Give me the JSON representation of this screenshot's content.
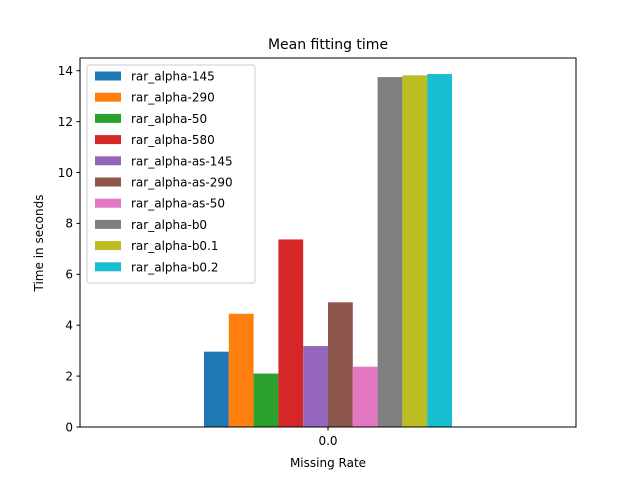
{
  "chart_data": {
    "type": "bar",
    "title": "Mean fitting time",
    "xlabel": "Missing Rate",
    "ylabel": "Time in seconds",
    "categories": [
      "0.0"
    ],
    "ylim": [
      0,
      14.5
    ],
    "yticks": [
      0,
      2,
      4,
      6,
      8,
      10,
      12,
      14
    ],
    "legend_position": "upper-left",
    "series": [
      {
        "name": "rar_alpha-145",
        "values": [
          2.96
        ],
        "color": "#1f77b4"
      },
      {
        "name": "rar_alpha-290",
        "values": [
          4.45
        ],
        "color": "#ff7f0e"
      },
      {
        "name": "rar_alpha-50",
        "values": [
          2.1
        ],
        "color": "#2ca02c"
      },
      {
        "name": "rar_alpha-580",
        "values": [
          7.37
        ],
        "color": "#d62728"
      },
      {
        "name": "rar_alpha-as-145",
        "values": [
          3.18
        ],
        "color": "#9467bd"
      },
      {
        "name": "rar_alpha-as-290",
        "values": [
          4.9
        ],
        "color": "#8c564b"
      },
      {
        "name": "rar_alpha-as-50",
        "values": [
          2.37
        ],
        "color": "#e377c2"
      },
      {
        "name": "rar_alpha-b0",
        "values": [
          13.75
        ],
        "color": "#7f7f7f"
      },
      {
        "name": "rar_alpha-b0.1",
        "values": [
          13.82
        ],
        "color": "#bcbd22"
      },
      {
        "name": "rar_alpha-b0.2",
        "values": [
          13.87
        ],
        "color": "#17becf"
      }
    ]
  }
}
